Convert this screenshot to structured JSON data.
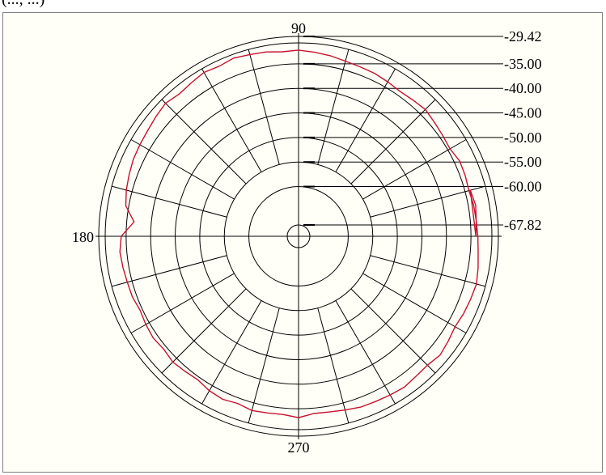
{
  "header": {
    "text": "(..., ...)"
  },
  "colors": {
    "trace": "#c8102e",
    "grid": "#000000",
    "background": "#fffff7",
    "frame": "#808080"
  },
  "chart_data": {
    "type": "polar",
    "title": "",
    "angle_labels": [
      {
        "angle": 90,
        "label": "90"
      },
      {
        "angle": 180,
        "label": "180"
      },
      {
        "angle": 270,
        "label": "270"
      }
    ],
    "radial_labels": [
      "-29.42",
      "-35.00",
      "-40.00",
      "-45.00",
      "-50.00",
      "-55.00",
      "-60.00",
      "-67.82"
    ],
    "rlim": [
      -67.82,
      -29.42
    ],
    "rings": [
      -35,
      -40,
      -45,
      -50,
      -55,
      -60
    ],
    "spoke_step_deg": 15,
    "grid": true,
    "series": [
      {
        "angle_step_deg": 5,
        "r": [
          -34.0,
          -33.8,
          -33.9,
          -34.2,
          -34.0,
          -33.9,
          -34.5,
          -34.3,
          -34.0,
          -33.6,
          -33.9,
          -34.1,
          -33.8,
          -33.5,
          -33.4,
          -33.2,
          -32.8,
          -32.5,
          -32.2,
          -32.4,
          -32.0,
          -31.8,
          -31.5,
          -31.9,
          -31.6,
          -32.0,
          -32.3,
          -31.8,
          -32.2,
          -32.6,
          -32.8,
          -33.0,
          -33.4,
          -33.8,
          -34.4,
          -36.5,
          -34.0,
          -33.6,
          -33.8,
          -34.0,
          -34.1,
          -34.5,
          -34.2,
          -34.0,
          -34.3,
          -33.9,
          -34.2,
          -34.4,
          -33.8,
          -33.5,
          -33.9,
          -33.4,
          -33.6,
          -33.7,
          -33.2,
          -33.9,
          -33.8,
          -33.5,
          -33.1,
          -33.0,
          -32.8,
          -32.6,
          -32.9,
          -33.0,
          -32.5,
          -32.9,
          -33.3,
          -33.0,
          -32.8,
          -32.6,
          -33.0,
          -33.4,
          -33.6,
          -33.8,
          -33.5,
          -33.9
        ]
      }
    ]
  }
}
